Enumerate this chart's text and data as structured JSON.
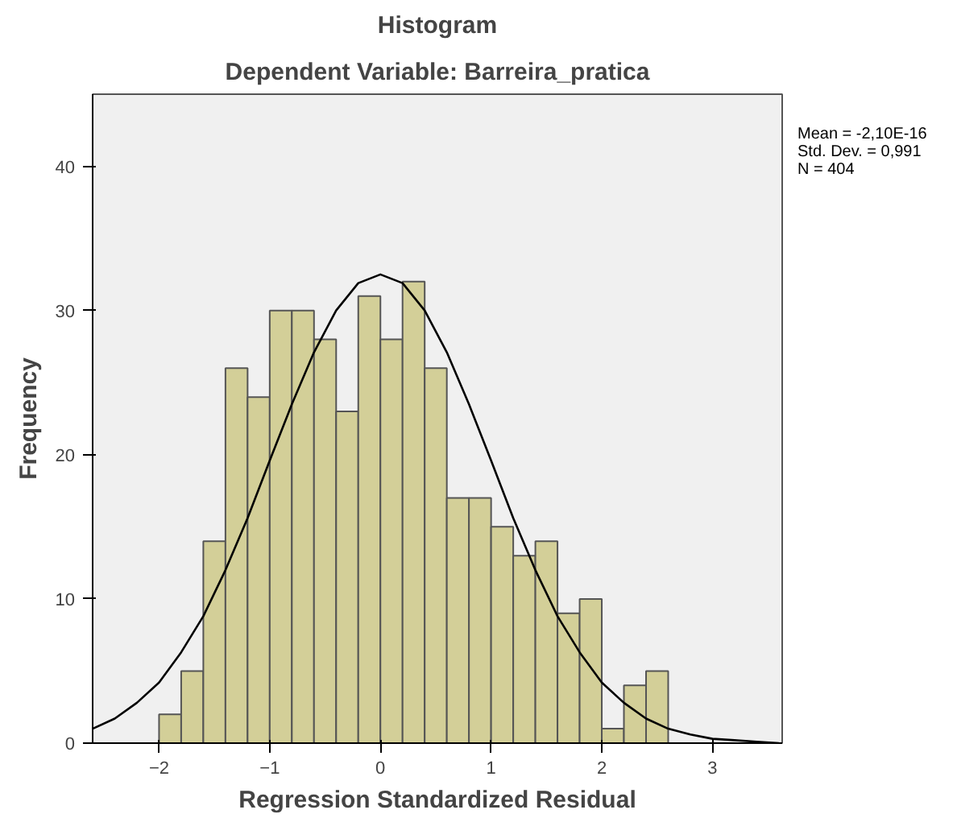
{
  "chart_data": {
    "type": "histogram",
    "title": "Histogram",
    "subtitle": "Dependent Variable: Barreira_pratica",
    "xlabel": "Regression Standardized Residual",
    "ylabel": "Frequency",
    "bins": [
      -2.0,
      -1.8,
      -1.6,
      -1.4,
      -1.2,
      -1.0,
      -0.8,
      -0.6,
      -0.4,
      -0.2,
      0.0,
      0.2,
      0.4,
      0.6,
      0.8,
      1.0,
      1.2,
      1.4,
      1.6,
      1.8,
      2.0,
      2.2,
      2.4,
      2.6
    ],
    "values": [
      2,
      5,
      14,
      26,
      24,
      30,
      30,
      28,
      23,
      31,
      28,
      32,
      26,
      17,
      17,
      15,
      13,
      14,
      9,
      10,
      1,
      4,
      5
    ],
    "color": "#d3cf98",
    "series": [
      {
        "type": "line",
        "color": "#000000",
        "x": [
          -2.6,
          -2.4,
          -2.2,
          -2.0,
          -1.8,
          -1.6,
          -1.4,
          -1.2,
          -1.0,
          -0.8,
          -0.6,
          -0.4,
          -0.2,
          0.0,
          0.2,
          0.4,
          0.6,
          0.8,
          1.0,
          1.2,
          1.4,
          1.6,
          1.8,
          2.0,
          2.2,
          2.4,
          2.6,
          2.8,
          3.0,
          3.2,
          3.4,
          3.6
        ],
        "values": [
          1.0,
          1.7,
          2.8,
          4.2,
          6.3,
          8.8,
          12.0,
          15.6,
          19.6,
          23.5,
          27.1,
          30.0,
          31.9,
          32.5,
          31.9,
          30.0,
          27.1,
          23.5,
          19.6,
          15.6,
          12.0,
          8.8,
          6.3,
          4.2,
          2.8,
          1.7,
          1.0,
          0.6,
          0.3,
          0.2,
          0.1,
          0.0
        ]
      }
    ],
    "xlim": [
      -2.6,
      3.63
    ],
    "ylim": [
      0,
      45
    ],
    "xticks": [
      -2,
      -1,
      0,
      1,
      2,
      3
    ],
    "yticks": [
      0,
      10,
      20,
      30,
      40
    ],
    "grid": false,
    "annotations": [
      "Mean = -2,10E-16",
      "Std. Dev. = 0,991",
      "N = 404"
    ]
  }
}
